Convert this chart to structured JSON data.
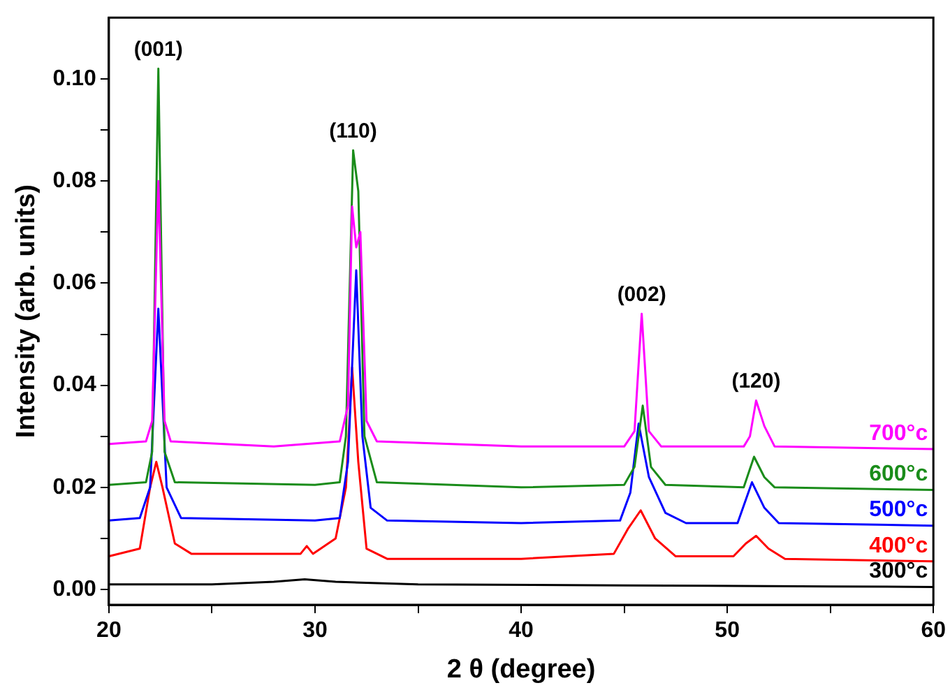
{
  "chart_data": {
    "type": "line",
    "xlabel": "2 θ (degree)",
    "ylabel": "Intensity (arb. units)",
    "xlim": [
      20,
      60
    ],
    "xticks": [
      20,
      {
        "value": 25,
        "label": null
      },
      30,
      {
        "value": 35,
        "label": null
      },
      40,
      {
        "value": 45,
        "label": null
      },
      50,
      {
        "value": 55,
        "label": null
      },
      60
    ],
    "ylim": [
      -0.003,
      0.112
    ],
    "yticks": [
      {
        "value": 0,
        "label": "0.00"
      },
      {
        "value": 0.01,
        "label": null
      },
      {
        "value": 0.02,
        "label": "0.02"
      },
      {
        "value": 0.03,
        "label": null
      },
      {
        "value": 0.04,
        "label": "0.04"
      },
      {
        "value": 0.05,
        "label": null
      },
      {
        "value": 0.06,
        "label": "0.06"
      },
      {
        "value": 0.07,
        "label": null
      },
      {
        "value": 0.08,
        "label": "0.08"
      },
      {
        "value": 0.09,
        "label": null
      },
      {
        "value": 0.1,
        "label": "0.10"
      }
    ],
    "grid": false,
    "legend": false,
    "marker": "none",
    "line_style": "solid",
    "annotations": [
      {
        "text": "(001)",
        "x": 22.4,
        "y": 0.102
      },
      {
        "text": "(110)",
        "x": 31.85,
        "y": 0.086
      },
      {
        "text": "(002)",
        "x": 45.85,
        "y": 0.054
      },
      {
        "text": "(120)",
        "x": 51.4,
        "y": 0.037
      }
    ],
    "series": [
      {
        "name": "700°c",
        "color": "#ff00ff",
        "x": [
          20,
          21.8,
          22.1,
          22.4,
          22.7,
          23,
          28,
          31.2,
          31.6,
          31.8,
          32.0,
          32.2,
          32.5,
          33,
          40,
          45,
          45.5,
          45.85,
          46.2,
          46.8,
          50.8,
          51.1,
          51.4,
          51.8,
          52.3,
          60
        ],
        "values": [
          0.0285,
          0.029,
          0.033,
          0.08,
          0.033,
          0.029,
          0.028,
          0.029,
          0.036,
          0.075,
          0.067,
          0.07,
          0.033,
          0.029,
          0.028,
          0.028,
          0.031,
          0.054,
          0.031,
          0.028,
          0.028,
          0.03,
          0.037,
          0.032,
          0.028,
          0.0275
        ]
      },
      {
        "name": "600°c",
        "color": "#1a8c1a",
        "x": [
          20,
          21.8,
          22.1,
          22.4,
          22.7,
          23.2,
          30,
          31.2,
          31.5,
          31.85,
          32.1,
          32.4,
          33,
          40,
          45,
          45.5,
          45.9,
          46.3,
          47,
          50.8,
          51.3,
          51.8,
          52.3,
          60
        ],
        "values": [
          0.0205,
          0.021,
          0.027,
          0.102,
          0.027,
          0.021,
          0.0205,
          0.021,
          0.03,
          0.086,
          0.078,
          0.03,
          0.021,
          0.02,
          0.0205,
          0.024,
          0.036,
          0.024,
          0.0205,
          0.02,
          0.026,
          0.022,
          0.02,
          0.0195
        ]
      },
      {
        "name": "500°c",
        "color": "#0000ff",
        "x": [
          20,
          21.5,
          22.0,
          22.4,
          22.8,
          23.5,
          30,
          31.2,
          31.6,
          32.0,
          32.3,
          32.7,
          33.5,
          40,
          44.8,
          45.3,
          45.7,
          46.2,
          47,
          48,
          50.5,
          51.2,
          51.8,
          52.5,
          60
        ],
        "values": [
          0.0135,
          0.014,
          0.02,
          0.055,
          0.02,
          0.014,
          0.0135,
          0.014,
          0.025,
          0.0625,
          0.03,
          0.016,
          0.0135,
          0.013,
          0.0135,
          0.019,
          0.0325,
          0.022,
          0.015,
          0.013,
          0.013,
          0.021,
          0.016,
          0.013,
          0.0125
        ]
      },
      {
        "name": "400°c",
        "color": "#ff0000",
        "x": [
          20,
          21.5,
          22.0,
          22.3,
          22.6,
          23.2,
          24,
          29.3,
          29.6,
          29.9,
          31.0,
          31.5,
          31.8,
          32.1,
          32.5,
          33.5,
          40,
          44.5,
          45.2,
          45.8,
          46.5,
          47.5,
          50.3,
          50.9,
          51.4,
          52,
          52.8,
          60
        ],
        "values": [
          0.0065,
          0.008,
          0.02,
          0.025,
          0.02,
          0.009,
          0.007,
          0.007,
          0.0085,
          0.007,
          0.01,
          0.02,
          0.0435,
          0.025,
          0.008,
          0.006,
          0.006,
          0.007,
          0.012,
          0.0155,
          0.01,
          0.0065,
          0.0065,
          0.009,
          0.0105,
          0.008,
          0.006,
          0.0055
        ]
      },
      {
        "name": "300°c",
        "color": "#000000",
        "x": [
          20,
          25,
          28,
          29.5,
          31,
          35,
          45,
          55,
          60
        ],
        "values": [
          0.001,
          0.001,
          0.0015,
          0.002,
          0.0015,
          0.001,
          0.0008,
          0.0006,
          0.0005
        ]
      }
    ]
  }
}
